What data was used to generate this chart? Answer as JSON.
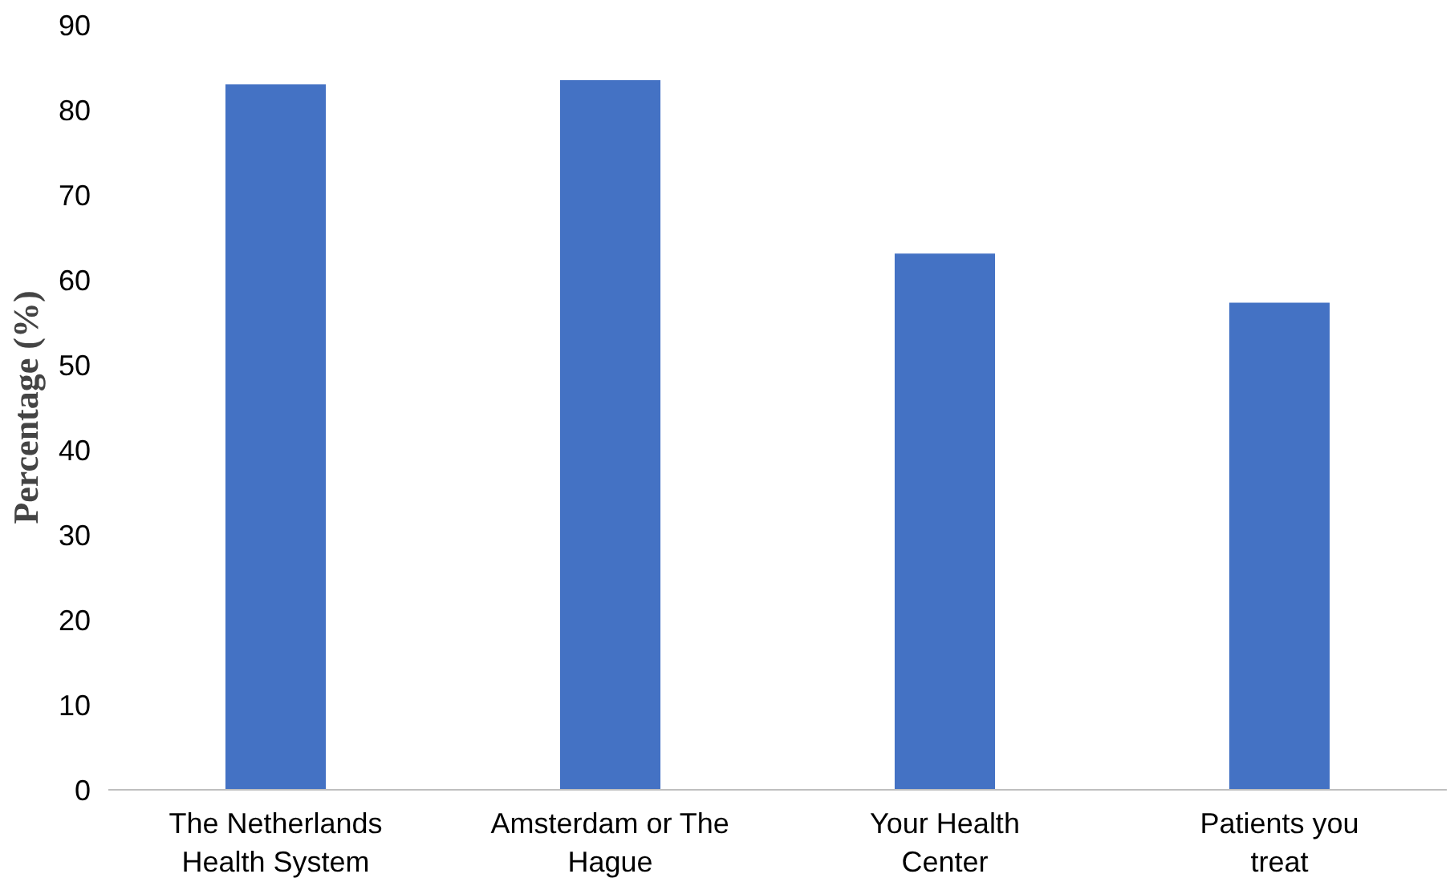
{
  "chart_data": {
    "type": "bar",
    "ylabel": "Percentage (%)",
    "categories": [
      "The Netherlands Health System",
      "Amsterdam or The Hague",
      "Your Health Center",
      "Patients you treat"
    ],
    "values": [
      83.0,
      83.5,
      63.1,
      57.3
    ],
    "color": "#4472c4",
    "ylim": [
      0,
      90
    ],
    "yticks": [
      0,
      10,
      20,
      30,
      40,
      50,
      60,
      70,
      80,
      90
    ],
    "grid": false
  }
}
